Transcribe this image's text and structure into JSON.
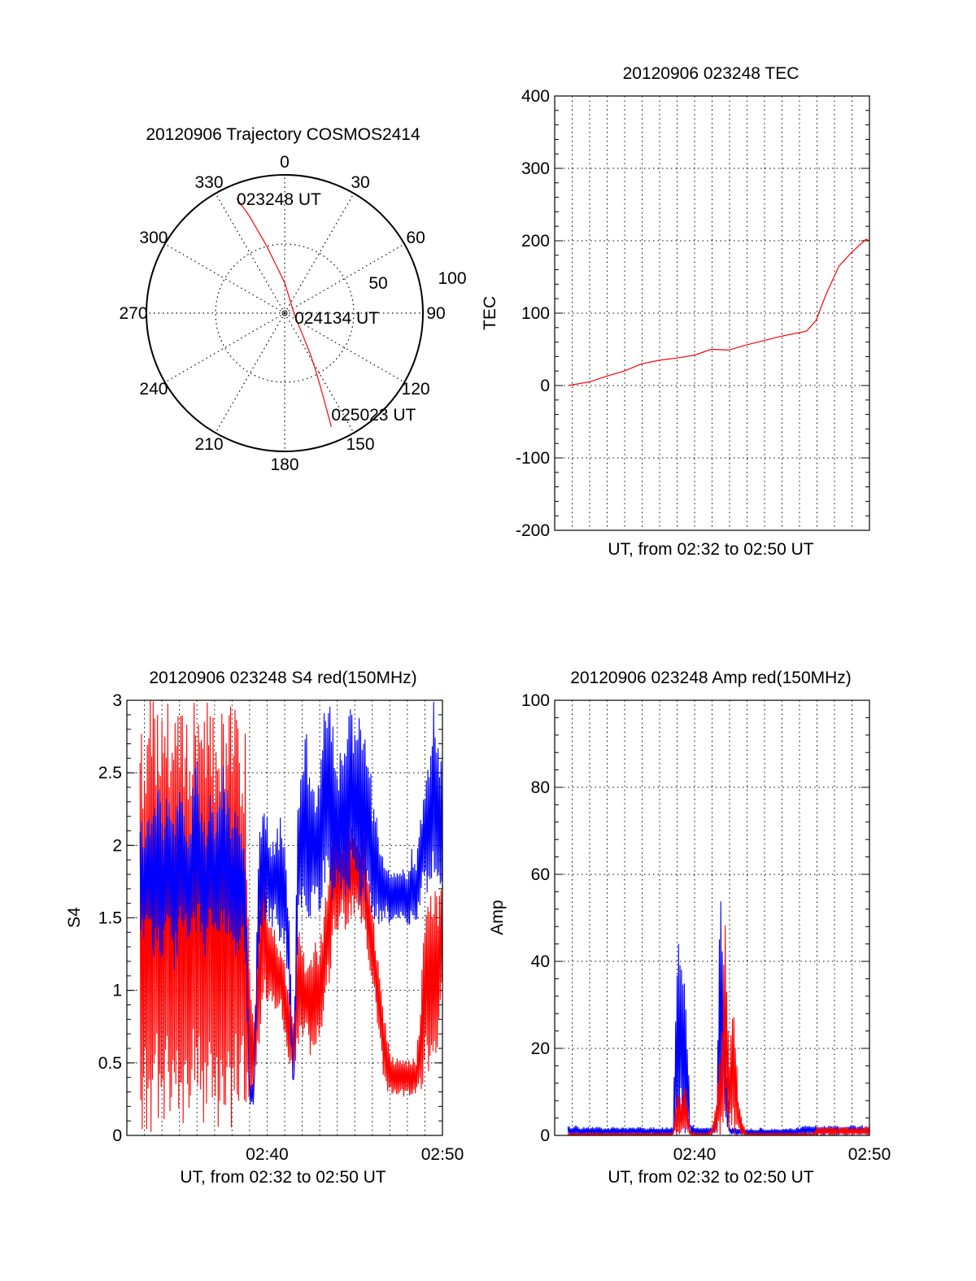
{
  "chart_data": [
    {
      "type": "polar",
      "title": "20120906 Trajectory COSMOS2414",
      "azimuth_labels": [
        "0",
        "30",
        "60",
        "90",
        "120",
        "150",
        "180",
        "210",
        "240",
        "270",
        "300",
        "330"
      ],
      "radial_labels": [
        "50",
        "100"
      ],
      "radial_range": [
        0,
        100
      ],
      "trajectory": {
        "color": "#ff0000",
        "points": [
          [
            337.3,
            90
          ],
          [
            340,
            75
          ],
          [
            344.8,
            51
          ],
          [
            350,
            35
          ],
          [
            0,
            22
          ],
          [
            28.6,
            9
          ],
          [
            105,
            7.5
          ],
          [
            140,
            20
          ],
          [
            148,
            35
          ],
          [
            152,
            49
          ],
          [
            155,
            65
          ],
          [
            157.7,
            89
          ]
        ]
      },
      "annotations": [
        {
          "text": "023248 UT",
          "az": 337.3,
          "r": 90
        },
        {
          "text": "024134 UT",
          "az": 112.6,
          "r": 7.7
        },
        {
          "text": "025023 UT",
          "az": 157.7,
          "r": 89
        }
      ]
    },
    {
      "type": "line",
      "title": "20120906 023248 TEC",
      "xlabel": "UT, from 02:32 to 02:50 UT",
      "ylabel": "TEC",
      "xlim_minutes_after_0232": [
        0,
        18
      ],
      "ylim": [
        -200,
        400
      ],
      "yticks": [
        "-200",
        "-100",
        "0",
        "100",
        "200",
        "300",
        "400"
      ],
      "ytick_values": [
        -200,
        -100,
        0,
        100,
        200,
        300,
        400
      ],
      "minor_step": 20,
      "xticks": [],
      "series": [
        {
          "name": "TEC",
          "color": "#ff0000",
          "t": [
            0.77,
            1.98,
            2.98,
            3.98,
            4.98,
            6.0,
            7.0,
            8.0,
            8.95,
            9.95,
            10.95,
            11.95,
            12.95,
            13.95,
            14.4,
            14.95,
            15.5,
            16.26,
            17.03,
            17.8,
            18.0
          ],
          "values": [
            0,
            5,
            13,
            20,
            30,
            35,
            38,
            42,
            50,
            49,
            56,
            62,
            68,
            73,
            75,
            90,
            125,
            165,
            185,
            202,
            200
          ]
        }
      ]
    },
    {
      "type": "line",
      "title": "20120906 023248 S4 red(150MHz)",
      "xlabel": "UT, from 02:32 to 02:50 UT",
      "ylabel": "S4",
      "xlim_minutes_after_0232": [
        0,
        18
      ],
      "ylim": [
        0,
        3
      ],
      "yticks": [
        "0",
        "0.5",
        "1",
        "1.5",
        "2",
        "2.5",
        "3"
      ],
      "ytick_values": [
        0,
        0.5,
        1,
        1.5,
        2,
        2.5,
        3
      ],
      "minor_step": 0.1,
      "xticks": [
        {
          "t": 8,
          "label": "02:40"
        },
        {
          "t": 18,
          "label": "02:50"
        }
      ],
      "series": [
        {
          "name": "red",
          "color": "#ff0000",
          "t_start": 0.75,
          "t_step": 0.25,
          "lo": [
            0,
            0,
            0,
            0,
            0,
            0,
            0,
            0,
            0,
            0,
            0,
            0,
            0,
            0,
            0,
            0,
            0,
            0,
            0,
            0,
            0,
            0,
            0,
            0,
            0,
            0.2,
            0.3,
            0.5,
            0.9,
            0.9,
            0.95,
            0.8,
            0.9,
            0.6,
            0.5,
            0.3,
            0.6,
            0.6,
            0.7,
            0.5,
            0.6,
            0.6,
            0.8,
            1.0,
            1.3,
            1.4,
            1.5,
            1.4,
            1.5,
            1.5,
            1.5,
            1.4,
            1.2,
            1.0,
            0.8,
            0.5,
            0.3,
            0.25,
            0.25,
            0.25,
            0.25,
            0.25,
            0.25,
            0.25,
            0.3,
            0.4,
            0.4,
            0.5,
            0.5,
            0.9
          ],
          "hi": [
            3,
            3,
            3,
            3,
            3,
            3,
            3,
            3,
            3,
            3,
            3,
            3,
            3,
            3,
            3,
            3,
            3,
            3,
            3,
            3,
            3,
            3,
            3,
            3,
            2.8,
            1.2,
            0.8,
            1.5,
            2.2,
            1.6,
            1.5,
            1.4,
            1.3,
            1.2,
            1.0,
            0.8,
            1.5,
            1.3,
            1.2,
            1.3,
            1.4,
            1.3,
            1.6,
            1.9,
            2.1,
            2.3,
            2.0,
            2.4,
            2.2,
            2.1,
            2.0,
            2.2,
            1.8,
            1.6,
            1.3,
            1.0,
            0.8,
            0.6,
            0.55,
            0.55,
            0.55,
            0.55,
            0.55,
            0.55,
            0.9,
            1.7,
            1.6,
            1.8,
            1.7,
            1.8
          ]
        },
        {
          "name": "blue",
          "color": "#0000ff",
          "t_start": 0.75,
          "t_step": 0.25,
          "lo": [
            1.4,
            1.3,
            1.4,
            1.2,
            1.3,
            1.2,
            1.4,
            1.3,
            1.1,
            1.3,
            1.4,
            1.2,
            1.3,
            1.4,
            1.3,
            1.2,
            1.4,
            1.3,
            1.4,
            1.3,
            1.4,
            1.3,
            1.2,
            1.3,
            1.2,
            0.2,
            0.2,
            1.2,
            1.4,
            1.5,
            1.4,
            1.5,
            1.3,
            1.3,
            1.0,
            0.2,
            1.4,
            1.6,
            1.5,
            1.5,
            1.6,
            1.5,
            1.6,
            1.7,
            1.6,
            1.6,
            1.7,
            1.6,
            1.7,
            1.6,
            1.6,
            1.5,
            1.6,
            1.4,
            1.5,
            1.4,
            1.5,
            1.4,
            1.5,
            1.4,
            1.5,
            1.4,
            1.5,
            1.4,
            1.6,
            1.7,
            1.6,
            1.8,
            1.7,
            1.6
          ],
          "hi": [
            2.3,
            2.1,
            2.2,
            2.3,
            2.6,
            2.2,
            2.4,
            2.3,
            2.2,
            2.5,
            2.3,
            2.2,
            2.4,
            2.6,
            2.3,
            2.2,
            2.5,
            2.2,
            2.3,
            2.6,
            2.4,
            2.2,
            2.3,
            2.1,
            2.0,
            0.4,
            0.35,
            2.0,
            2.3,
            2.2,
            2.0,
            2.1,
            2.2,
            2.0,
            1.5,
            0.4,
            2.4,
            2.6,
            2.8,
            2.5,
            2.4,
            2.6,
            3.0,
            3.0,
            2.9,
            2.5,
            2.8,
            2.7,
            3.0,
            2.9,
            3.0,
            2.8,
            2.7,
            2.4,
            2.2,
            2.0,
            1.9,
            1.8,
            1.9,
            1.8,
            1.9,
            1.8,
            2.0,
            1.9,
            2.2,
            2.5,
            2.6,
            3.0,
            2.7,
            2.6
          ]
        }
      ]
    },
    {
      "type": "line",
      "title": "20120906 023248 Amp red(150MHz)",
      "xlabel": "UT, from 02:32 to 02:50 UT",
      "ylabel": "Amp",
      "xlim_minutes_after_0232": [
        0,
        18
      ],
      "ylim": [
        0,
        100
      ],
      "yticks": [
        "0",
        "20",
        "40",
        "60",
        "80",
        "100"
      ],
      "ytick_values": [
        0,
        20,
        40,
        60,
        80,
        100
      ],
      "minor_step": 4,
      "xticks": [
        {
          "t": 8,
          "label": "02:40"
        },
        {
          "t": 18,
          "label": "02:50"
        }
      ],
      "series": [
        {
          "name": "blue",
          "color": "#0000ff",
          "t_start": 0.75,
          "t_step": 0.25,
          "hi": [
            2.2,
            2.0,
            2.4,
            1.8,
            2.1,
            2.0,
            1.9,
            2.2,
            1.8,
            2.0,
            1.9,
            2.1,
            1.8,
            2.0,
            1.9,
            1.8,
            2.0,
            1.9,
            1.8,
            2.0,
            1.9,
            2.0,
            1.8,
            1.9,
            2.0,
            49,
            44,
            36,
            3,
            2.2,
            2.0,
            1.8,
            2.0,
            2.2,
            5,
            68,
            25,
            2.0,
            1.8,
            1.6,
            1.9,
            1.5,
            1.6,
            1.5,
            1.8,
            1.6,
            1.5,
            1.7,
            1.6,
            1.5,
            1.6,
            1.8,
            1.7,
            2.0,
            2.2,
            2.4,
            2.2,
            2.5,
            2.3,
            2.4,
            2.2,
            2.5,
            2.3,
            2.2,
            2.6,
            2.4,
            2.3,
            2.5,
            2.2,
            2.4
          ]
        },
        {
          "name": "red",
          "color": "#ff0000",
          "t_start": 0.75,
          "t_step": 0.25,
          "hi": [
            0.5,
            0.5,
            0.5,
            0.5,
            0.5,
            0.5,
            0.5,
            0.5,
            0.5,
            0.5,
            0.5,
            0.5,
            0.5,
            0.5,
            0.5,
            0.5,
            0.5,
            0.5,
            0.5,
            0.5,
            0.5,
            0.5,
            0.5,
            0.5,
            0.5,
            10,
            9,
            12,
            1,
            0.5,
            0.5,
            0.5,
            0.5,
            2,
            8,
            22,
            50,
            20,
            32,
            8,
            3,
            0.5,
            0.5,
            0.5,
            0.5,
            0.5,
            0.5,
            0.5,
            0.5,
            0.5,
            0.5,
            0.5,
            0.5,
            0.5,
            0.5,
            0.5,
            0.5,
            2,
            2,
            2,
            2,
            2,
            2,
            2,
            2,
            2,
            2,
            2,
            2,
            2
          ]
        }
      ]
    }
  ]
}
